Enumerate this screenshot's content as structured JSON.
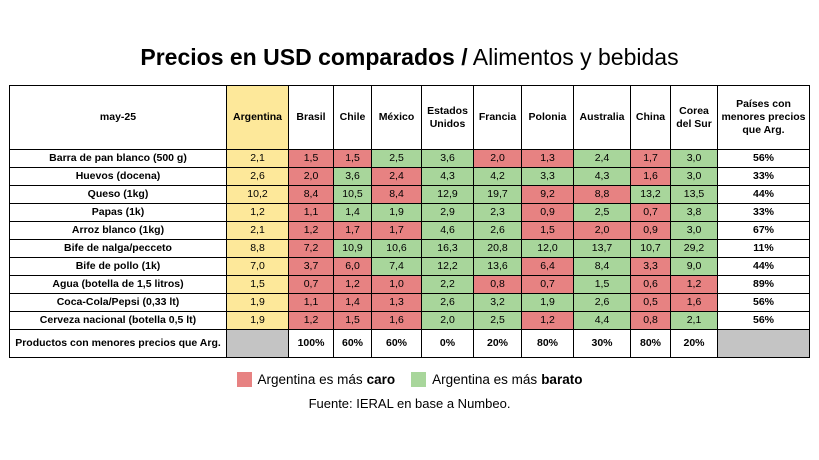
{
  "title_bold": "Precios en USD comparados /",
  "title_regular": "Alimentos y bebidas",
  "colors": {
    "caro": "#e78282",
    "barato": "#a8d69b",
    "argentina": "#fde89a",
    "gray": "#c4c4c4"
  },
  "chart_data": {
    "type": "table",
    "header_label": "may-25",
    "columns": [
      "Argentina",
      "Brasil",
      "Chile",
      "México",
      "Estados Unidos",
      "Francia",
      "Polonia",
      "Australia",
      "China",
      "Corea del Sur"
    ],
    "share_header": "Países con menores precios que Arg.",
    "rows": [
      {
        "label": "Barra de pan blanco (500 g)",
        "values": [
          "2,1",
          "1,5",
          "1,5",
          "2,5",
          "3,6",
          "2,0",
          "1,3",
          "2,4",
          "1,7",
          "3,0"
        ],
        "share": "56%"
      },
      {
        "label": "Huevos (docena)",
        "values": [
          "2,6",
          "2,0",
          "3,6",
          "2,4",
          "4,3",
          "4,2",
          "3,3",
          "4,3",
          "1,6",
          "3,0"
        ],
        "share": "33%"
      },
      {
        "label": "Queso (1kg)",
        "values": [
          "10,2",
          "8,4",
          "10,5",
          "8,4",
          "12,9",
          "19,7",
          "9,2",
          "8,8",
          "13,2",
          "13,5"
        ],
        "share": "44%"
      },
      {
        "label": "Papas (1k)",
        "values": [
          "1,2",
          "1,1",
          "1,4",
          "1,9",
          "2,9",
          "2,3",
          "0,9",
          "2,5",
          "0,7",
          "3,8"
        ],
        "share": "33%"
      },
      {
        "label": "Arroz blanco (1kg)",
        "values": [
          "2,1",
          "1,2",
          "1,7",
          "1,7",
          "4,6",
          "2,6",
          "1,5",
          "2,0",
          "0,9",
          "3,0"
        ],
        "share": "67%"
      },
      {
        "label": "Bife de nalga/pecceto",
        "values": [
          "8,8",
          "7,2",
          "10,9",
          "10,6",
          "16,3",
          "20,8",
          "12,0",
          "13,7",
          "10,7",
          "29,2"
        ],
        "share": "11%"
      },
      {
        "label": "Bife de pollo (1k)",
        "values": [
          "7,0",
          "3,7",
          "6,0",
          "7,4",
          "12,2",
          "13,6",
          "6,4",
          "8,4",
          "3,3",
          "9,0"
        ],
        "share": "44%"
      },
      {
        "label": "Agua (botella de 1,5 litros)",
        "values": [
          "1,5",
          "0,7",
          "1,2",
          "1,0",
          "2,2",
          "0,8",
          "0,7",
          "1,5",
          "0,6",
          "1,2"
        ],
        "share": "89%"
      },
      {
        "label": "Coca-Cola/Pepsi (0,33 lt)",
        "values": [
          "1,9",
          "1,1",
          "1,4",
          "1,3",
          "2,6",
          "3,2",
          "1,9",
          "2,6",
          "0,5",
          "1,6"
        ],
        "share": "56%"
      },
      {
        "label": "Cerveza nacional (botella 0,5 lt)",
        "values": [
          "1,9",
          "1,2",
          "1,5",
          "1,6",
          "2,0",
          "2,5",
          "1,2",
          "4,4",
          "0,8",
          "2,1"
        ],
        "share": "56%"
      }
    ],
    "footer_label": "Productos con menores precios que Arg.",
    "footer_values": [
      "100%",
      "60%",
      "60%",
      "0%",
      "20%",
      "80%",
      "30%",
      "80%",
      "20%"
    ]
  },
  "legend": {
    "caro_prefix": "Argentina es más",
    "caro_bold": "caro",
    "barato_prefix": "Argentina es más",
    "barato_bold": "barato"
  },
  "source": "Fuente: IERAL en base a Numbeo."
}
